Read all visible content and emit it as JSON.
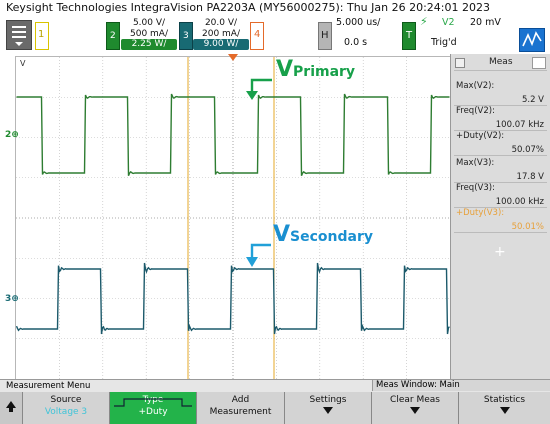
{
  "title": "Keysight Technologies IntegraVision PA2203A (MY56000275): Thu Jan 26 20:24:01 2023",
  "channels": {
    "ch1": {
      "num": "1"
    },
    "ch2": {
      "num": "2",
      "line1": "5.00 V/",
      "line2": "500 mA/",
      "line3": "2.25 W/"
    },
    "ch3": {
      "num": "3",
      "line1": "20.0 V/",
      "line2": "200 mA/",
      "line3": "9.00 W/"
    },
    "ch4": {
      "num": "4"
    }
  },
  "horizontal": {
    "key": "H",
    "timebase": "5.000 us/",
    "delay": "0.0 s"
  },
  "trigger": {
    "key": "T",
    "source": "V2",
    "level": "20 mV",
    "status": "Trig'd"
  },
  "scope": {
    "top_marker": "V",
    "annotation_primary": {
      "v": "V",
      "sub": "Primary"
    },
    "annotation_secondary": {
      "v": "V",
      "sub": "Secondary"
    },
    "ch2_marker": "2",
    "ch3_marker": "3",
    "colors": {
      "primary": "#2e7d32",
      "secondary": "#1c5a6b",
      "arrow": "#21a0d8",
      "primary_text": "#17a04a",
      "secondary_text": "#1a8fd0",
      "cursor": "#e6a92a",
      "grid": "#b9b9b9",
      "bg": "#ffffff"
    },
    "waveform_primary_fraction_high": 0.5007,
    "waveform_secondary_fraction_high": 0.5001
  },
  "meas_panel": {
    "title": "Meas",
    "items": [
      {
        "label": "Max(V2):",
        "value": "5.2 V"
      },
      {
        "label": "Freq(V2):",
        "value": "100.07 kHz"
      },
      {
        "label": "+Duty(V2):",
        "value": "50.07%"
      },
      {
        "label": "Max(V3):",
        "value": "17.8 V"
      },
      {
        "label": "Freq(V3):",
        "value": "100.00 kHz"
      },
      {
        "label": "+Duty(V3):",
        "value": "50.01%"
      }
    ],
    "add": "+"
  },
  "menu": {
    "title": "Measurement Menu",
    "window": "Meas Window: Main"
  },
  "softkeys": [
    {
      "l1": "Source",
      "l2": "Voltage 3"
    },
    {
      "l1": "Type",
      "l2": "+Duty"
    },
    {
      "l1": "Add",
      "l2": "Measurement"
    },
    {
      "l1": "Settings",
      "l2": ""
    },
    {
      "l1": "Clear Meas",
      "l2": ""
    },
    {
      "l1": "Statistics",
      "l2": ""
    }
  ]
}
